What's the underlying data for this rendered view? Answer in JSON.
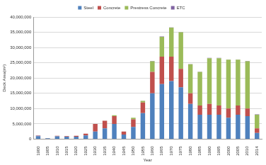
{
  "chart_data": {
    "type": "bar",
    "stacked": true,
    "grid": true,
    "legend": "top",
    "x_label": "Year",
    "y_label": "Deck Area(m²)",
    "categories": [
      "1900",
      "1905",
      "1910",
      "1915",
      "1920",
      "1925",
      "1930",
      "1935",
      "1940",
      "1945",
      "1950",
      "1955",
      "1960",
      "1965",
      "1970",
      "1975",
      "1980",
      "1985",
      "1990",
      "1995",
      "2000",
      "2005",
      "2010",
      "2014"
    ],
    "ylim": [
      0,
      40000000
    ],
    "yticks": [
      0,
      {
        "value": 5000000,
        "label": "5,000,000"
      },
      {
        "value": 10000000,
        "label": "10,000,000"
      },
      {
        "value": 15000000,
        "label": "15,000,000"
      },
      {
        "value": 20000000,
        "label": "20,000,000"
      },
      {
        "value": 25000000,
        "label": "25,000,000"
      },
      {
        "value": 30000000,
        "label": "30,000,000"
      },
      {
        "value": 35000000,
        "label": "35,000,000"
      },
      {
        "value": 40000000,
        "label": "40,000,000"
      }
    ],
    "series": [
      {
        "name": "Steel",
        "color": "#4f81bd",
        "values": [
          1000000,
          300000,
          900000,
          800000,
          800000,
          1200000,
          2500000,
          3500000,
          5000000,
          1500000,
          4000000,
          8500000,
          15000000,
          18000000,
          19000000,
          17000000,
          11500000,
          8000000,
          8000000,
          8000000,
          7000000,
          8000000,
          7500000,
          2000000
        ]
      },
      {
        "name": "Concrete",
        "color": "#c0504d",
        "values": [
          100000,
          50000,
          200000,
          200000,
          300000,
          600000,
          2500000,
          2500000,
          2500000,
          1000000,
          2500000,
          3500000,
          7000000,
          9000000,
          8000000,
          6000000,
          3500000,
          3000000,
          3500000,
          3000000,
          3000000,
          3000000,
          2500000,
          1500000
        ]
      },
      {
        "name": "Prestress Concrete",
        "color": "#9bbb59",
        "values": [
          0,
          0,
          0,
          0,
          0,
          0,
          0,
          0,
          300000,
          0,
          500000,
          500000,
          3500000,
          6500000,
          9500000,
          12000000,
          9500000,
          11000000,
          15000000,
          15500000,
          16000000,
          15000000,
          15500000,
          4500000
        ]
      },
      {
        "name": "ETC",
        "color": "#8064a2",
        "values": [
          100000,
          0,
          0,
          0,
          0,
          0,
          0,
          0,
          0,
          0,
          0,
          100000,
          100000,
          100000,
          100000,
          100000,
          100000,
          100000,
          100000,
          100000,
          100000,
          100000,
          100000,
          100000
        ]
      }
    ]
  }
}
